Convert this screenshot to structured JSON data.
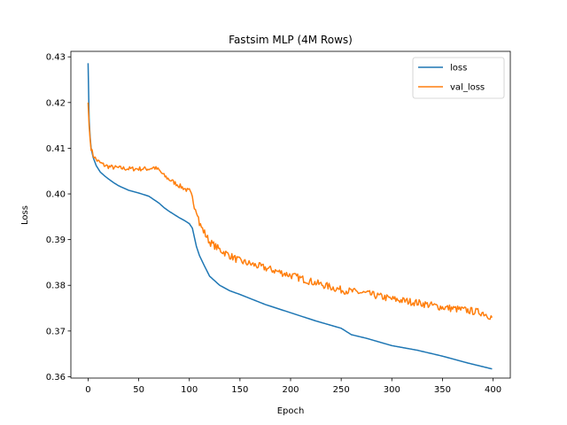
{
  "chart_data": {
    "type": "line",
    "title": "Fastsim MLP (4M Rows)",
    "xlabel": "Epoch",
    "ylabel": "Loss",
    "xlim": [
      -17,
      417
    ],
    "ylim": [
      0.3597,
      0.4312
    ],
    "xticks": [
      0,
      50,
      100,
      150,
      200,
      250,
      300,
      350,
      400
    ],
    "yticks": [
      0.36,
      0.37,
      0.38,
      0.39,
      0.4,
      0.41,
      0.42,
      0.43
    ],
    "ytick_labels": [
      "0.36",
      "0.37",
      "0.38",
      "0.39",
      "0.40",
      "0.41",
      "0.42",
      "0.43"
    ],
    "grid": false,
    "legend_position": "top-right",
    "series": [
      {
        "name": "loss",
        "color": "#1f77b4",
        "x": [
          0,
          1,
          2,
          3,
          5,
          8,
          12,
          16,
          20,
          25,
          30,
          40,
          50,
          60,
          70,
          75,
          80,
          85,
          90,
          95,
          100,
          103,
          105,
          107,
          110,
          115,
          120,
          130,
          140,
          150,
          175,
          200,
          225,
          250,
          260,
          275,
          300,
          325,
          350,
          375,
          399
        ],
        "y": [
          0.4286,
          0.4165,
          0.4125,
          0.41,
          0.408,
          0.4062,
          0.4048,
          0.404,
          0.4033,
          0.4025,
          0.4018,
          0.4008,
          0.4002,
          0.3995,
          0.398,
          0.397,
          0.3962,
          0.3955,
          0.3948,
          0.3942,
          0.3935,
          0.3925,
          0.3905,
          0.3885,
          0.3865,
          0.3842,
          0.382,
          0.38,
          0.3788,
          0.378,
          0.3758,
          0.374,
          0.3722,
          0.3706,
          0.3692,
          0.3684,
          0.3668,
          0.3658,
          0.3645,
          0.363,
          0.3617
        ]
      },
      {
        "name": "val_loss",
        "color": "#ff7f0e",
        "x": [
          0,
          1,
          2,
          3,
          5,
          8,
          12,
          16,
          20,
          25,
          30,
          40,
          50,
          60,
          65,
          70,
          75,
          80,
          85,
          90,
          95,
          100,
          103,
          105,
          108,
          110,
          115,
          120,
          130,
          140,
          150,
          175,
          200,
          225,
          250,
          275,
          300,
          325,
          350,
          375,
          390,
          399
        ],
        "y": [
          0.42,
          0.415,
          0.412,
          0.41,
          0.4085,
          0.4075,
          0.4068,
          0.4063,
          0.406,
          0.4058,
          0.4057,
          0.4055,
          0.4055,
          0.4055,
          0.4058,
          0.4052,
          0.404,
          0.4032,
          0.4025,
          0.4018,
          0.4012,
          0.4005,
          0.399,
          0.3975,
          0.396,
          0.3935,
          0.3915,
          0.3895,
          0.3878,
          0.3865,
          0.3853,
          0.3838,
          0.3822,
          0.3805,
          0.379,
          0.3782,
          0.377,
          0.3762,
          0.3752,
          0.3745,
          0.374,
          0.373
        ]
      }
    ]
  }
}
